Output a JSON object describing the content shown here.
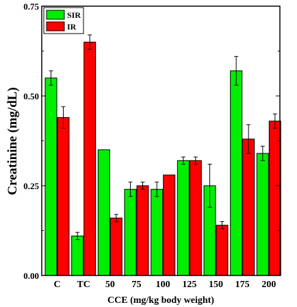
{
  "chart_data": {
    "type": "bar",
    "ylabel": "Creatinine (mg/dL)",
    "xlabel": "CCE  (mg/kg body weight)",
    "categories": [
      "C",
      "TC",
      "50",
      "75",
      "100",
      "125",
      "150",
      "175",
      "200"
    ],
    "ylim": [
      0,
      0.75
    ],
    "yticks": [
      "0.00",
      "0.25",
      "0.50",
      "0.75"
    ],
    "legend_position": "top-left",
    "grid": false,
    "series": [
      {
        "name": "SIR",
        "color": "#00ee00",
        "values": [
          0.55,
          0.11,
          0.35,
          0.24,
          0.24,
          0.32,
          0.25,
          0.57,
          0.34
        ],
        "errors": [
          0.02,
          0.01,
          0.0,
          0.02,
          0.02,
          0.01,
          0.06,
          0.04,
          0.02
        ]
      },
      {
        "name": "IR",
        "color": "#ff0000",
        "values": [
          0.44,
          0.65,
          0.16,
          0.25,
          0.28,
          0.32,
          0.14,
          0.38,
          0.43
        ],
        "errors": [
          0.03,
          0.02,
          0.01,
          0.01,
          0.0,
          0.01,
          0.01,
          0.04,
          0.02
        ]
      }
    ]
  }
}
